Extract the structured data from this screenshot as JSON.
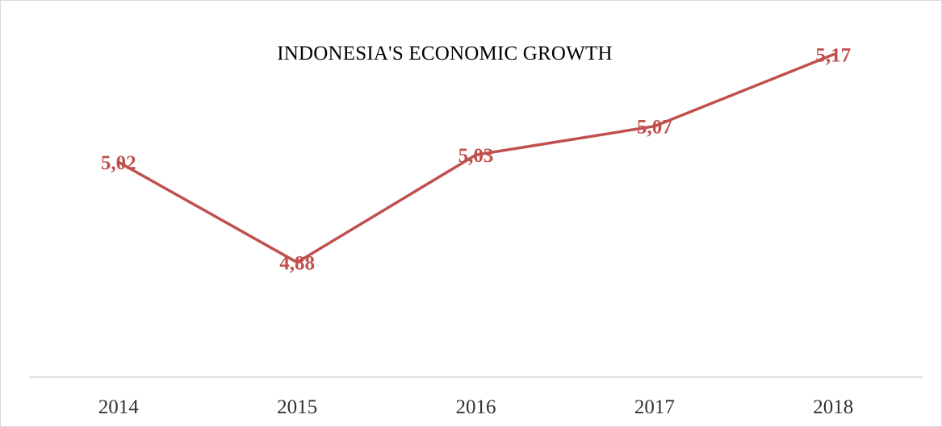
{
  "chart_data": {
    "type": "line",
    "title": "INDONESIA'S ECONOMIC GROWTH",
    "xlabel": "",
    "ylabel": "",
    "categories": [
      "2014",
      "2015",
      "2016",
      "2017",
      "2018"
    ],
    "series": [
      {
        "values": [
          5.02,
          4.88,
          5.03,
          5.07,
          5.17
        ],
        "data_labels": [
          "5,02",
          "4,88",
          "5,03",
          "5,07",
          "5,17"
        ],
        "color": "#c0504d"
      }
    ],
    "ylim": [
      4.72,
      5.2
    ],
    "grid": false,
    "legend": "none",
    "axis_color": "#d9d9d9"
  }
}
